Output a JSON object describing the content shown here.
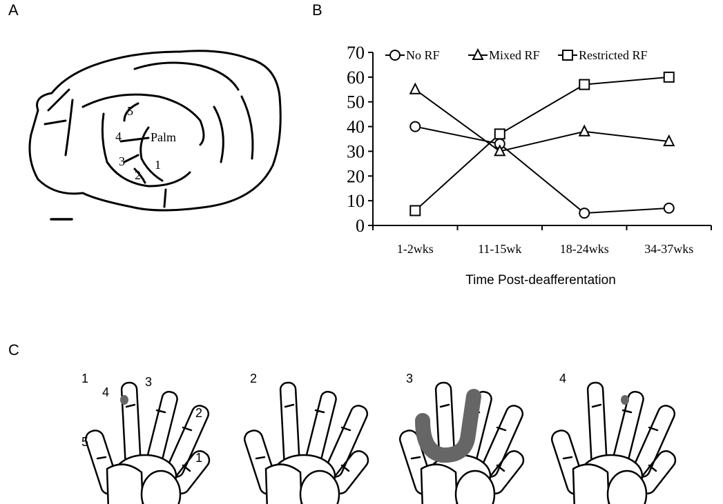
{
  "panels": {
    "a": "A",
    "b": "B",
    "c": "C"
  },
  "brain": {
    "labels": [
      "5",
      "4",
      "Palm",
      "3",
      "2",
      "1"
    ]
  },
  "chart_data": {
    "type": "line",
    "x_label": "Time Post-deafferentation",
    "categories": [
      "1-2wks",
      "11-15wk",
      "18-24wks",
      "34-37wks"
    ],
    "series": [
      {
        "name": "No RF",
        "color": "#000000",
        "marker": "circle",
        "values": [
          40,
          33,
          5,
          7
        ]
      },
      {
        "name": "Mixed RF",
        "color": "#000000",
        "marker": "triangle",
        "values": [
          55,
          30,
          38,
          34
        ]
      },
      {
        "name": "Restricted RF",
        "color": "#000000",
        "marker": "square",
        "values": [
          6,
          37,
          57,
          60
        ]
      }
    ],
    "ylim": [
      0,
      70
    ],
    "yticks": [
      0,
      10,
      20,
      30,
      40,
      50,
      60,
      70
    ],
    "grid": false,
    "legend": "top"
  },
  "hands": {
    "titles": [
      "1",
      "2",
      "3",
      "4"
    ],
    "digit_labels": [
      "4",
      "3",
      "2",
      "5",
      "1"
    ]
  }
}
